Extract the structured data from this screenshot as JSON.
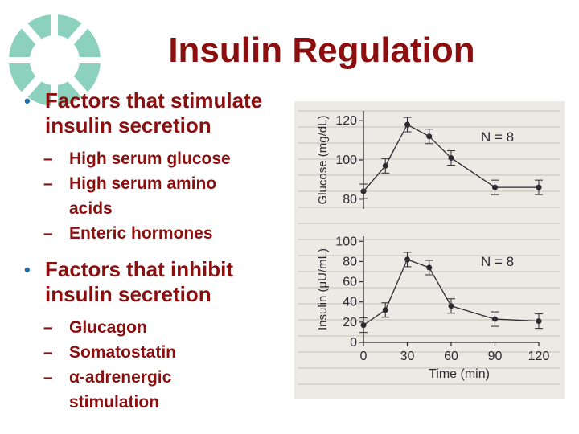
{
  "slide": {
    "title": "Insulin Regulation",
    "bullets": [
      {
        "text1": "Factors that stimulate",
        "text2": "insulin secretion",
        "subs": [
          {
            "line1": "High serum glucose",
            "line2": ""
          },
          {
            "line1": "High serum amino",
            "line2": "acids"
          },
          {
            "line1": "Enteric hormones",
            "line2": ""
          }
        ]
      },
      {
        "text1": "Factors that inhibit",
        "text2": "insulin secretion",
        "subs": [
          {
            "line1": "Glucagon",
            "line2": ""
          },
          {
            "line1": "Somatostatin",
            "line2": ""
          },
          {
            "line1": "α-adrenergic",
            "line2": "stimulation"
          }
        ]
      }
    ]
  },
  "chart_data": [
    {
      "type": "line",
      "ylabel": "Glucose (mg/dL)",
      "annotation": "N = 8",
      "yticks": [
        80,
        100,
        120
      ],
      "ylim": [
        75,
        125
      ],
      "xlim": [
        0,
        120
      ],
      "x": [
        0,
        15,
        30,
        45,
        60,
        90,
        120
      ],
      "values": [
        84,
        97,
        118,
        112,
        101,
        86,
        86
      ]
    },
    {
      "type": "line",
      "ylabel": "Insulin (μU/mL)",
      "xlabel": "Time (min)",
      "annotation": "N = 8",
      "yticks": [
        0,
        20,
        40,
        60,
        80,
        100
      ],
      "xticks": [
        0,
        30,
        60,
        90,
        120
      ],
      "ylim": [
        0,
        105
      ],
      "xlim": [
        0,
        120
      ],
      "x": [
        0,
        15,
        30,
        45,
        60,
        90,
        120
      ],
      "values": [
        17,
        32,
        82,
        74,
        36,
        23,
        21
      ]
    }
  ]
}
